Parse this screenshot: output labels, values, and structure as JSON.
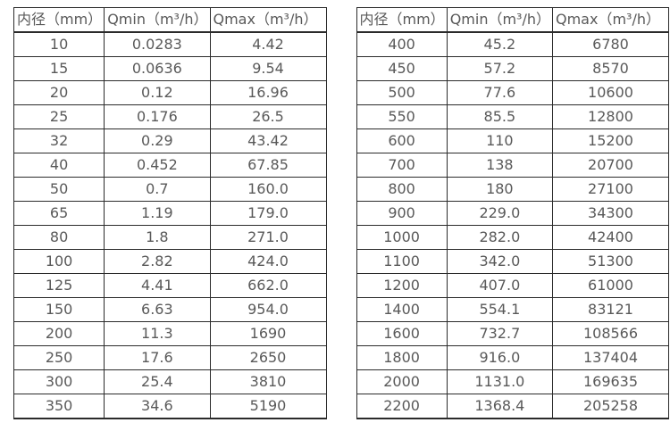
{
  "page": {
    "background": "#ffffff",
    "text_color": "#595959",
    "border_color": "#2b2b2b"
  },
  "tables": [
    {
      "name": "flow-rate-table-small-diameters",
      "headers": [
        "内径（mm）",
        "Qmin（m³/h）",
        "Qmax（m³/h）"
      ],
      "rows": [
        [
          "10",
          "0.0283",
          "4.42"
        ],
        [
          "15",
          "0.0636",
          "9.54"
        ],
        [
          "20",
          "0.12",
          "16.96"
        ],
        [
          "25",
          "0.176",
          "26.5"
        ],
        [
          "32",
          "0.29",
          "43.42"
        ],
        [
          "40",
          "0.452",
          "67.85"
        ],
        [
          "50",
          "0.7",
          "160.0"
        ],
        [
          "65",
          "1.19",
          "179.0"
        ],
        [
          "80",
          "1.8",
          "271.0"
        ],
        [
          "100",
          "2.82",
          "424.0"
        ],
        [
          "125",
          "4.41",
          "662.0"
        ],
        [
          "150",
          "6.63",
          "954.0"
        ],
        [
          "200",
          "11.3",
          "1690"
        ],
        [
          "250",
          "17.6",
          "2650"
        ],
        [
          "300",
          "25.4",
          "3810"
        ],
        [
          "350",
          "34.6",
          "5190"
        ]
      ]
    },
    {
      "name": "flow-rate-table-large-diameters",
      "headers": [
        "内径（mm）",
        "Qmin（m³/h）",
        "Qmax（m³/h）"
      ],
      "rows": [
        [
          "400",
          "45.2",
          "6780"
        ],
        [
          "450",
          "57.2",
          "8570"
        ],
        [
          "500",
          "77.6",
          "10600"
        ],
        [
          "550",
          "85.5",
          "12800"
        ],
        [
          "600",
          "110",
          "15200"
        ],
        [
          "700",
          "138",
          "20700"
        ],
        [
          "800",
          "180",
          "27100"
        ],
        [
          "900",
          "229.0",
          "34300"
        ],
        [
          "1000",
          "282.0",
          "42400"
        ],
        [
          "1100",
          "342.0",
          "51300"
        ],
        [
          "1200",
          "407.0",
          "61000"
        ],
        [
          "1400",
          "554.1",
          "83121"
        ],
        [
          "1600",
          "732.7",
          "108566"
        ],
        [
          "1800",
          "916.0",
          "137404"
        ],
        [
          "2000",
          "1131.0",
          "169635"
        ],
        [
          "2200",
          "1368.4",
          "205258"
        ]
      ]
    }
  ]
}
